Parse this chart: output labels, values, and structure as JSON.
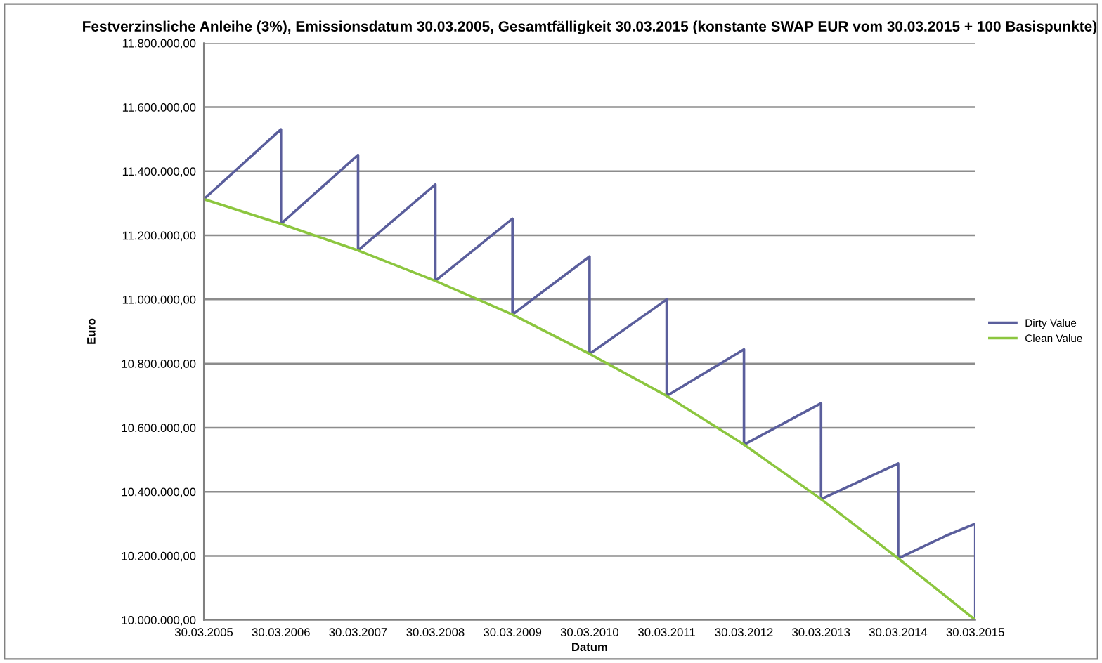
{
  "chart_data": {
    "type": "line",
    "title": "Festverzinsliche Anleihe (3%), Emissionsdatum 30.03.2005, Gesamtfälligkeit 30.03.2015 (konstante SWAP EUR vom 30.03.2015 + 100 Basispunkte)",
    "xlabel": "Datum",
    "ylabel": "Euro",
    "series": [
      {
        "name": "Dirty Value",
        "color": "#5a5e9c",
        "x": [
          "2005-03-30",
          "2006-03-30",
          "2006-03-30",
          "2007-03-30",
          "2007-03-30",
          "2008-03-30",
          "2008-03-30",
          "2009-03-30",
          "2009-03-30",
          "2010-03-30",
          "2010-03-30",
          "2011-03-30",
          "2011-03-30",
          "2012-03-30",
          "2012-03-30",
          "2013-03-30",
          "2013-03-30",
          "2014-03-30",
          "2014-03-30",
          "2014-11-20",
          "2015-03-30",
          "2015-03-30"
        ],
        "values": [
          11313000,
          11531000,
          11236000,
          11451000,
          11153000,
          11359000,
          11058000,
          11252000,
          10953000,
          11134000,
          10830000,
          11000000,
          10699000,
          10844000,
          10547000,
          10676000,
          10377000,
          10488000,
          10192000,
          10265000,
          10300000,
          10000000
        ]
      },
      {
        "name": "Clean Value",
        "color": "#8cc63f",
        "x": [
          "2005-03-30",
          "2006-03-30",
          "2007-03-30",
          "2008-03-30",
          "2009-03-30",
          "2010-03-30",
          "2011-03-30",
          "2012-03-30",
          "2013-03-30",
          "2014-03-30",
          "2014-06-22",
          "2015-03-30"
        ],
        "values": [
          11313000,
          11236000,
          11153000,
          11058000,
          10953000,
          10830000,
          10699000,
          10547000,
          10377000,
          10192000,
          10148000,
          10000000
        ]
      }
    ],
    "xlim": [
      "2005-03-30",
      "2015-03-30"
    ],
    "xticks": [
      {
        "value": "2005-03-30",
        "label": "30.03.2005"
      },
      {
        "value": "2006-03-30",
        "label": "30.03.2006"
      },
      {
        "value": "2007-03-30",
        "label": "30.03.2007"
      },
      {
        "value": "2008-03-30",
        "label": "30.03.2008"
      },
      {
        "value": "2009-03-30",
        "label": "30.03.2009"
      },
      {
        "value": "2010-03-30",
        "label": "30.03.2010"
      },
      {
        "value": "2011-03-30",
        "label": "30.03.2011"
      },
      {
        "value": "2012-03-30",
        "label": "30.03.2012"
      },
      {
        "value": "2013-03-30",
        "label": "30.03.2013"
      },
      {
        "value": "2014-03-30",
        "label": "30.03.2014"
      },
      {
        "value": "2015-03-30",
        "label": "30.03.2015"
      }
    ],
    "ylim": [
      10000000,
      11800000
    ],
    "yticks": [
      {
        "value": 10000000,
        "label": "10.000.000,00"
      },
      {
        "value": 10200000,
        "label": "10.200.000,00"
      },
      {
        "value": 10400000,
        "label": "10.400.000,00"
      },
      {
        "value": 10600000,
        "label": "10.600.000,00"
      },
      {
        "value": 10800000,
        "label": "10.800.000,00"
      },
      {
        "value": 11000000,
        "label": "11.000.000,00"
      },
      {
        "value": 11200000,
        "label": "11.200.000,00"
      },
      {
        "value": 11400000,
        "label": "11.400.000,00"
      },
      {
        "value": 11600000,
        "label": "11.600.000,00"
      },
      {
        "value": 11800000,
        "label": "11.800.000,00"
      }
    ],
    "grid": "y",
    "legend": "right",
    "marker": "none",
    "line_style": "solid"
  }
}
